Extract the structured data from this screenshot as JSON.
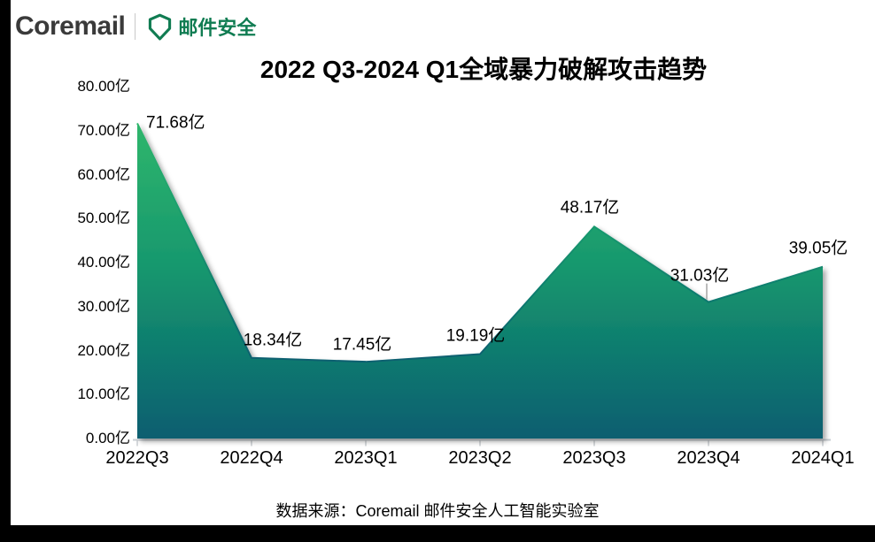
{
  "page": {
    "background": "#ffffff",
    "left_bar_color": "#000000",
    "bottom_bar_color": "#000000"
  },
  "header": {
    "brand": "Coremail",
    "brand_color": "#3a3a3a",
    "divider": "|",
    "shield_icon": "shield-icon",
    "product": "邮件安全",
    "product_color": "#107c52"
  },
  "chart_data": {
    "type": "area",
    "title": "2022 Q3-2024 Q1全域暴力破解攻击趋势",
    "categories": [
      "2022Q3",
      "2022Q4",
      "2023Q1",
      "2023Q2",
      "2023Q3",
      "2023Q4",
      "2024Q1"
    ],
    "values": [
      71.68,
      18.34,
      17.45,
      19.19,
      48.17,
      31.03,
      39.05
    ],
    "data_labels": [
      "71.68亿",
      "18.34亿",
      "17.45亿",
      "19.19亿",
      "48.17亿",
      "31.03亿",
      "39.05亿"
    ],
    "unit": "亿",
    "y_ticks": [
      "80.00亿",
      "70.00亿",
      "60.00亿",
      "50.00亿",
      "40.00亿",
      "30.00亿",
      "20.00亿",
      "10.00亿",
      "0.00亿"
    ],
    "ylim": [
      0,
      80
    ],
    "grid": false,
    "legend": "none",
    "area_gradient_top": "#2fb66c",
    "area_gradient_mid": "#17986e",
    "area_gradient_bottom": "#075e6f",
    "axis_color": "#c9ced3",
    "tick_color": "#aeb4ba",
    "label_color": "#000000",
    "leader_line_color": "#a6a6a6"
  },
  "footer": {
    "source": "数据来源：Coremail 邮件安全人工智能实验室"
  }
}
